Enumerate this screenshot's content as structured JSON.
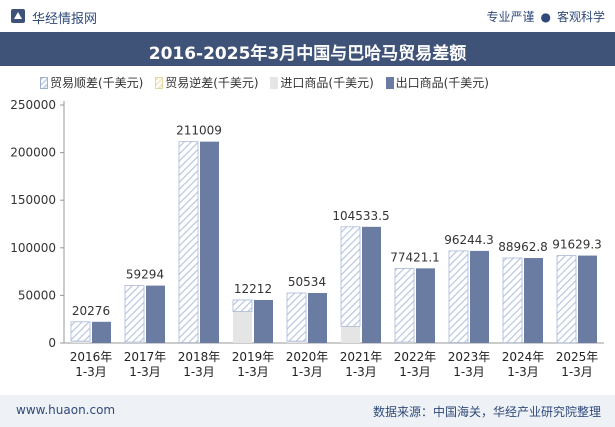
{
  "header": {
    "brand": "华经情报网",
    "slogan_left": "专业严谨",
    "slogan_dot": "●",
    "slogan_right": "客观科学",
    "title": "2016-2025年3月中国与巴哈马贸易差额"
  },
  "footer": {
    "site": "www.huaon.com",
    "source": "数据来源：中国海关，华经产业研究院整理"
  },
  "colors": {
    "title_bg": "#3f5277",
    "export": "#6b7ca2",
    "import": "#e5e5e5",
    "surplus_hatch": "#c9d4e8",
    "deficit_hatch": "#f1e8c6"
  },
  "chart_data": {
    "type": "bar",
    "categories": [
      "2016年\n1-3月",
      "2017年\n1-3月",
      "2018年\n1-3月",
      "2019年\n1-3月",
      "2020年\n1-3月",
      "2021年\n1-3月",
      "2022年\n1-3月",
      "2023年\n1-3月",
      "2024年\n1-3月",
      "2025年\n1-3月"
    ],
    "series": [
      {
        "name": "贸易顺差(千美元)",
        "style": "hatched-blue",
        "values": [
          20276,
          59294,
          211009,
          12212,
          50534,
          104533.5,
          77421.1,
          96244.3,
          88962.8,
          91629.3
        ],
        "labels": [
          "20276",
          "59294",
          "211009",
          "12212",
          "50534",
          "104533.5",
          "77421.1",
          "96244.3",
          "88962.8",
          "91629.3"
        ]
      },
      {
        "name": "贸易逆差(千美元)",
        "style": "hatched-yellow",
        "values": [
          0,
          0,
          0,
          0,
          0,
          0,
          0,
          0,
          0,
          0
        ]
      },
      {
        "name": "进口商品(千美元)",
        "style": "light-gray",
        "values": [
          2000,
          1000,
          500,
          33000,
          2000,
          17500,
          1000,
          500,
          300,
          200
        ]
      },
      {
        "name": "出口商品(千美元)",
        "style": "solid-blue",
        "values": [
          22276,
          60294,
          211509,
          45212,
          52534,
          122033.5,
          78421.1,
          96744.3,
          89262.8,
          91829.3
        ]
      }
    ],
    "yticks": [
      "0",
      "50000",
      "100000",
      "150000",
      "200000",
      "250000"
    ],
    "ylim": [
      0,
      250000
    ],
    "grid": false,
    "legend_position": "top-left"
  }
}
